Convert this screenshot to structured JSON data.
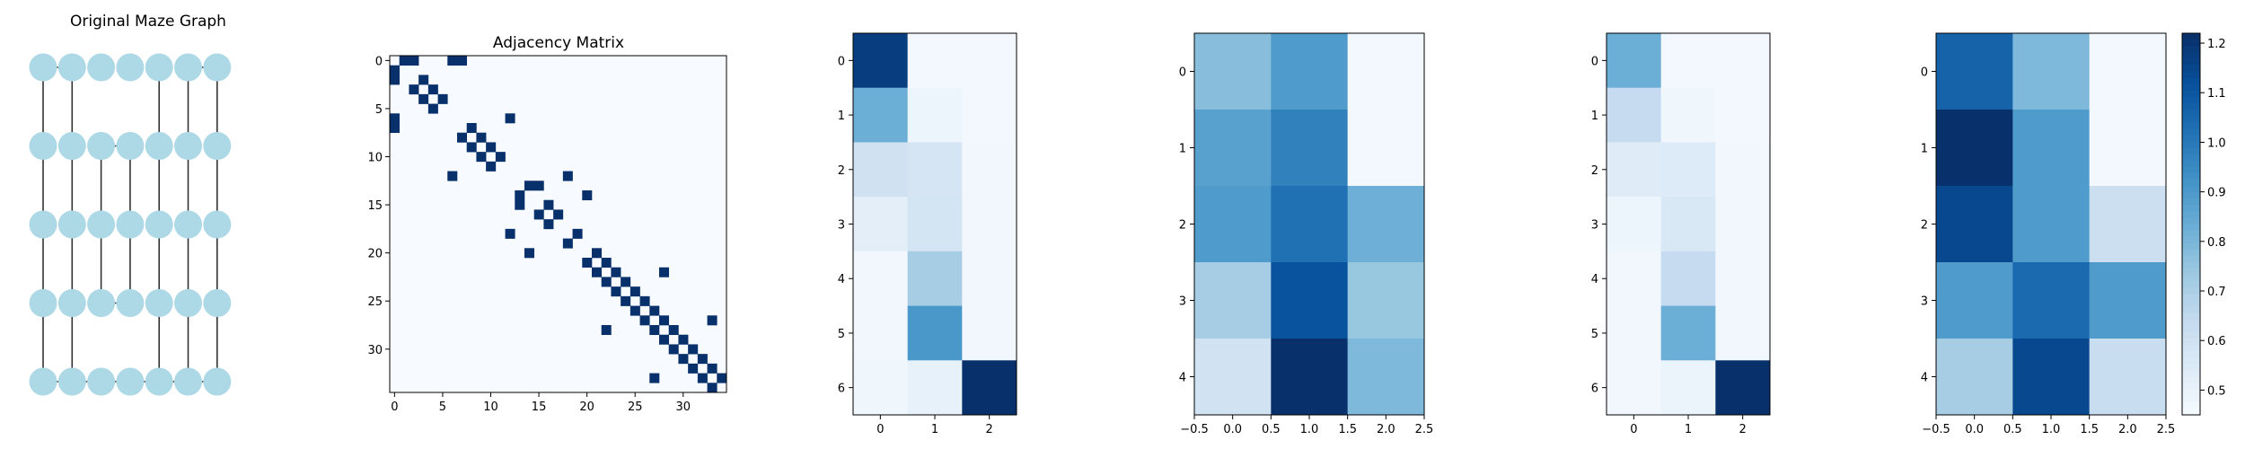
{
  "colors": {
    "node": "#add8e6",
    "edge": "#333333",
    "map_low": "#f7fbff",
    "map_high": "#08306b"
  },
  "chart_data": [
    {
      "type": "graph",
      "title": "Original Maze Graph",
      "grid": {
        "rows": 5,
        "cols": 7
      },
      "edges": [
        [
          [
            0,
            0
          ],
          [
            0,
            1
          ]
        ],
        [
          [
            0,
            5
          ],
          [
            0,
            6
          ]
        ],
        [
          [
            0,
            0
          ],
          [
            1,
            0
          ]
        ],
        [
          [
            1,
            0
          ],
          [
            2,
            0
          ]
        ],
        [
          [
            2,
            0
          ],
          [
            3,
            0
          ]
        ],
        [
          [
            3,
            0
          ],
          [
            4,
            0
          ]
        ],
        [
          [
            0,
            1
          ],
          [
            1,
            1
          ]
        ],
        [
          [
            1,
            1
          ],
          [
            2,
            1
          ]
        ],
        [
          [
            2,
            1
          ],
          [
            3,
            1
          ]
        ],
        [
          [
            3,
            1
          ],
          [
            4,
            1
          ]
        ],
        [
          [
            1,
            2
          ],
          [
            2,
            2
          ]
        ],
        [
          [
            2,
            2
          ],
          [
            3,
            2
          ]
        ],
        [
          [
            1,
            3
          ],
          [
            2,
            3
          ]
        ],
        [
          [
            2,
            3
          ],
          [
            3,
            3
          ]
        ],
        [
          [
            0,
            4
          ],
          [
            1,
            4
          ]
        ],
        [
          [
            1,
            4
          ],
          [
            2,
            4
          ]
        ],
        [
          [
            2,
            4
          ],
          [
            3,
            4
          ]
        ],
        [
          [
            3,
            4
          ],
          [
            4,
            4
          ]
        ],
        [
          [
            0,
            5
          ],
          [
            1,
            5
          ]
        ],
        [
          [
            1,
            5
          ],
          [
            2,
            5
          ]
        ],
        [
          [
            2,
            5
          ],
          [
            3,
            5
          ]
        ],
        [
          [
            3,
            5
          ],
          [
            4,
            5
          ]
        ],
        [
          [
            0,
            6
          ],
          [
            1,
            6
          ]
        ],
        [
          [
            1,
            6
          ],
          [
            2,
            6
          ]
        ],
        [
          [
            2,
            6
          ],
          [
            3,
            6
          ]
        ],
        [
          [
            3,
            6
          ],
          [
            4,
            6
          ]
        ],
        [
          [
            1,
            2
          ],
          [
            1,
            3
          ]
        ],
        [
          [
            3,
            2
          ],
          [
            3,
            3
          ]
        ],
        [
          [
            4,
            0
          ],
          [
            4,
            1
          ]
        ],
        [
          [
            4,
            1
          ],
          [
            4,
            2
          ]
        ],
        [
          [
            4,
            2
          ],
          [
            4,
            3
          ]
        ],
        [
          [
            4,
            3
          ],
          [
            4,
            4
          ]
        ],
        [
          [
            4,
            4
          ],
          [
            4,
            5
          ]
        ],
        [
          [
            4,
            5
          ],
          [
            4,
            6
          ]
        ]
      ]
    },
    {
      "type": "heatmap",
      "title": "Adjacency Matrix",
      "size": 35,
      "xticks": [
        0,
        5,
        10,
        15,
        20,
        25,
        30
      ],
      "yticks": [
        0,
        5,
        10,
        15,
        20,
        25,
        30
      ],
      "ones": [
        [
          0,
          1
        ],
        [
          0,
          2
        ],
        [
          0,
          6
        ],
        [
          0,
          7
        ],
        [
          1,
          0
        ],
        [
          2,
          0
        ],
        [
          2,
          3
        ],
        [
          3,
          2
        ],
        [
          3,
          4
        ],
        [
          4,
          3
        ],
        [
          4,
          5
        ],
        [
          5,
          4
        ],
        [
          6,
          0
        ],
        [
          7,
          0
        ],
        [
          7,
          8
        ],
        [
          8,
          7
        ],
        [
          8,
          9
        ],
        [
          9,
          8
        ],
        [
          9,
          10
        ],
        [
          10,
          9
        ],
        [
          10,
          11
        ],
        [
          11,
          10
        ],
        [
          6,
          12
        ],
        [
          12,
          6
        ],
        [
          13,
          14
        ],
        [
          14,
          13
        ],
        [
          13,
          15
        ],
        [
          15,
          13
        ],
        [
          14,
          20
        ],
        [
          20,
          14
        ],
        [
          15,
          16
        ],
        [
          16,
          15
        ],
        [
          16,
          17
        ],
        [
          17,
          16
        ],
        [
          18,
          19
        ],
        [
          19,
          18
        ],
        [
          18,
          12
        ],
        [
          12,
          18
        ],
        [
          20,
          21
        ],
        [
          21,
          20
        ],
        [
          21,
          22
        ],
        [
          22,
          21
        ],
        [
          22,
          23
        ],
        [
          23,
          22
        ],
        [
          23,
          24
        ],
        [
          24,
          23
        ],
        [
          24,
          25
        ],
        [
          25,
          24
        ],
        [
          25,
          26
        ],
        [
          26,
          25
        ],
        [
          26,
          27
        ],
        [
          27,
          26
        ],
        [
          27,
          28
        ],
        [
          28,
          27
        ],
        [
          28,
          29
        ],
        [
          29,
          28
        ],
        [
          29,
          30
        ],
        [
          30,
          29
        ],
        [
          30,
          31
        ],
        [
          31,
          30
        ],
        [
          31,
          32
        ],
        [
          32,
          31
        ],
        [
          32,
          33
        ],
        [
          33,
          32
        ],
        [
          33,
          34
        ],
        [
          34,
          33
        ],
        [
          27,
          33
        ],
        [
          33,
          27
        ],
        [
          22,
          28
        ],
        [
          28,
          22
        ]
      ]
    },
    {
      "type": "heatmap",
      "rows": 7,
      "cols": 3,
      "xticks": [
        0,
        1,
        2
      ],
      "yticks": [
        0,
        1,
        2,
        3,
        4,
        5,
        6
      ],
      "vmin": 0,
      "vmax": 1,
      "values": [
        [
          0.95,
          0.02,
          0.02
        ],
        [
          0.5,
          0.05,
          0.02
        ],
        [
          0.2,
          0.17,
          0.03
        ],
        [
          0.1,
          0.18,
          0.03
        ],
        [
          0.03,
          0.35,
          0.03
        ],
        [
          0.03,
          0.6,
          0.03
        ],
        [
          0.04,
          0.08,
          1.0
        ]
      ]
    },
    {
      "type": "heatmap",
      "rows": 5,
      "cols": 3,
      "xticks": [
        -0.5,
        0.0,
        0.5,
        1.0,
        1.5,
        2.0,
        2.5
      ],
      "yticks": [
        0,
        1,
        2,
        3,
        4
      ],
      "vmin": 0.45,
      "vmax": 1.22,
      "values": [
        [
          0.78,
          0.9,
          0.47
        ],
        [
          0.88,
          0.98,
          0.47
        ],
        [
          0.9,
          1.03,
          0.83
        ],
        [
          0.72,
          1.12,
          0.75
        ],
        [
          0.6,
          1.22,
          0.8
        ]
      ]
    },
    {
      "type": "heatmap",
      "rows": 7,
      "cols": 3,
      "xticks": [
        0,
        1,
        2
      ],
      "yticks": [
        0,
        1,
        2,
        3,
        4,
        5,
        6
      ],
      "vmin": 0,
      "vmax": 1,
      "values": [
        [
          0.5,
          0.02,
          0.02
        ],
        [
          0.25,
          0.04,
          0.02
        ],
        [
          0.12,
          0.13,
          0.03
        ],
        [
          0.05,
          0.15,
          0.03
        ],
        [
          0.03,
          0.25,
          0.03
        ],
        [
          0.03,
          0.5,
          0.03
        ],
        [
          0.03,
          0.06,
          1.0
        ]
      ]
    },
    {
      "type": "heatmap",
      "rows": 5,
      "cols": 3,
      "xticks": [
        -0.5,
        0.0,
        0.5,
        1.0,
        1.5,
        2.0,
        2.5
      ],
      "yticks": [
        0,
        1,
        2,
        3,
        4
      ],
      "vmin": 0.45,
      "vmax": 1.22,
      "values": [
        [
          1.07,
          0.8,
          0.47
        ],
        [
          1.22,
          0.9,
          0.47
        ],
        [
          1.15,
          0.9,
          0.62
        ],
        [
          0.9,
          1.05,
          0.9
        ],
        [
          0.72,
          1.15,
          0.63
        ]
      ],
      "colorbar": {
        "ticks": [
          0.5,
          0.6,
          0.7,
          0.8,
          0.9,
          1.0,
          1.1,
          1.2
        ]
      }
    }
  ]
}
